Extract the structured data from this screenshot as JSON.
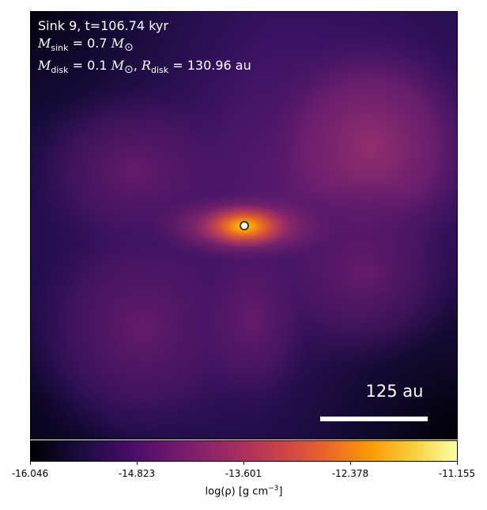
{
  "panel": {
    "title_line": "Sink 9, t=106.74 kyr",
    "m_sink_prefix": "M",
    "m_sink_sub": "sink",
    "m_sink_value": " = 0.7 ",
    "m_disk_prefix": "M",
    "m_disk_sub": "disk",
    "m_disk_value": " = 0.1 ",
    "r_disk_prefix": "R",
    "r_disk_sub": "disk",
    "r_disk_value": " = 130.96 au",
    "msun_symbol": "M",
    "msun_sub": "⊙"
  },
  "scalebar": {
    "label": "125 au"
  },
  "colorbar": {
    "ticks": [
      "-16.046",
      "-14.823",
      "-13.601",
      "-12.378",
      "-11.155"
    ],
    "label_main": "log(ρ) [g cm",
    "label_sup": "−3",
    "label_end": "]",
    "colormap": "inferno"
  },
  "colors": {
    "background_dark": "#25104e",
    "core": "#fb9b06",
    "lobes": "#8a2a6e"
  }
}
